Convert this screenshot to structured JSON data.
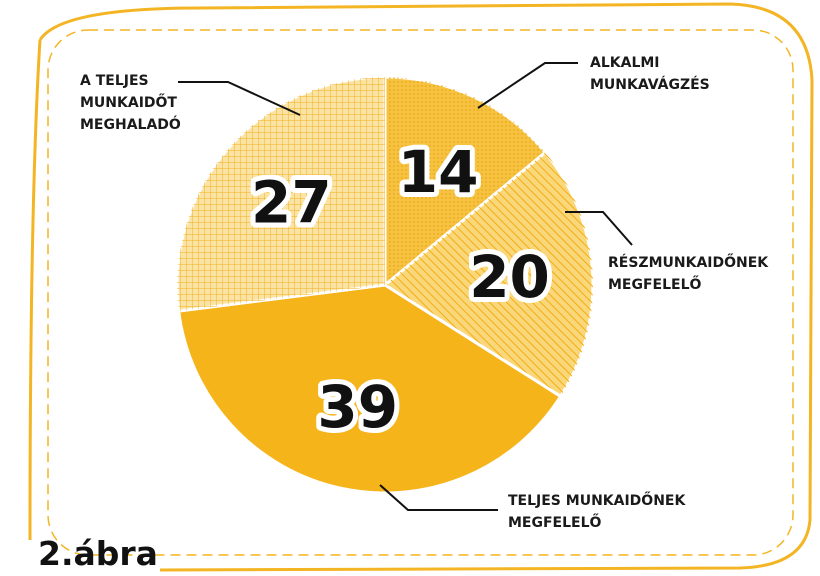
{
  "chart_data": {
    "type": "pie",
    "caption": "2.ábra",
    "categories": [
      "ALKALMI\nMUNKAVÁGZÉS",
      "RÉSZMUNKAIDŐNEK\nMEGFELELŐ",
      "TELJES MUNKAIDŐNEK\nMEGFELELŐ",
      "A TELJES\nMUNKAIDŐT\nMEGHALADÓ"
    ],
    "values": [
      14,
      20,
      39,
      27
    ],
    "colors": [
      "#f7c141",
      "#f9d77a",
      "#f6b41b",
      "#fbe3a3"
    ]
  }
}
